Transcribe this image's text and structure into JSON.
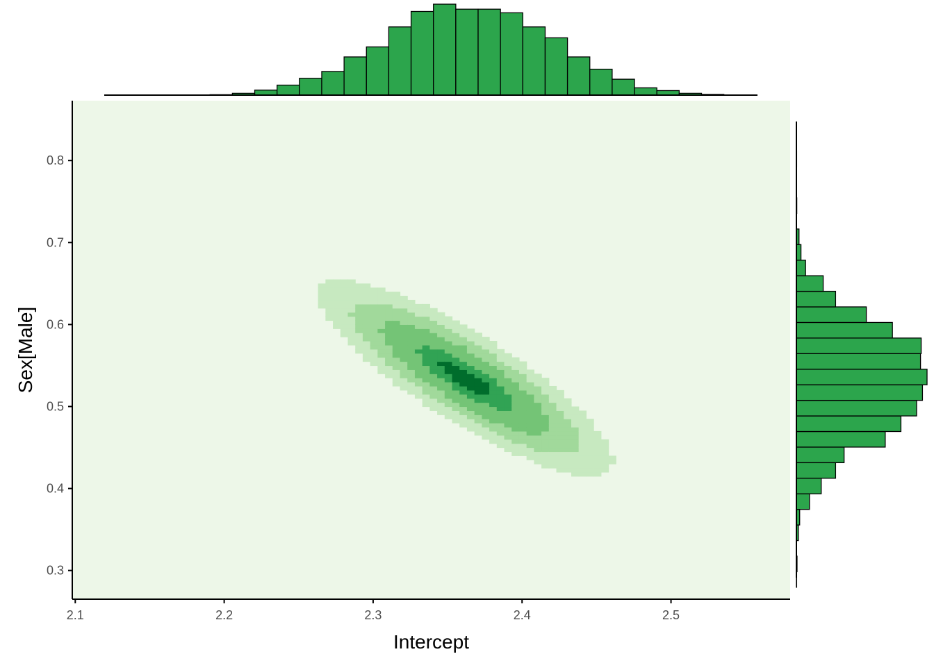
{
  "chart_data": {
    "type": "heatmap",
    "title": "",
    "xlabel": "Intercept",
    "ylabel": "Sex[Male]",
    "xlim": [
      2.098,
      2.58
    ],
    "ylim": [
      0.265,
      0.873
    ],
    "x_ticks": [
      "2.1",
      "2.2",
      "2.3",
      "2.4",
      "2.5"
    ],
    "y_ticks": [
      "0.3",
      "0.4",
      "0.5",
      "0.6",
      "0.7",
      "0.8"
    ],
    "grid": false,
    "legend": "none",
    "colors": {
      "levels": [
        "#edf7e8",
        "#c7e9c0",
        "#a1d99b",
        "#74c476",
        "#31a354",
        "#006d2c"
      ],
      "hist_fill": "#2ca54c",
      "hist_stroke": "#000000",
      "axis": "#000000"
    },
    "density": {
      "center": [
        2.362,
        0.535
      ],
      "sd": [
        0.048,
        0.058
      ],
      "rho": -0.85,
      "grid_step": [
        0.005,
        0.005
      ],
      "region": [
        2.098,
        2.58,
        0.265,
        0.873
      ],
      "level_thresholds": [
        0.12,
        0.28,
        0.5,
        0.8,
        0.94
      ]
    },
    "marginal_x": {
      "bin_width": 0.015,
      "bins": [
        {
          "x": 2.198,
          "count": 5
        },
        {
          "x": 2.213,
          "count": 20
        },
        {
          "x": 2.228,
          "count": 55
        },
        {
          "x": 2.243,
          "count": 110
        },
        {
          "x": 2.258,
          "count": 185
        },
        {
          "x": 2.273,
          "count": 260
        },
        {
          "x": 2.288,
          "count": 420
        },
        {
          "x": 2.303,
          "count": 530
        },
        {
          "x": 2.318,
          "count": 750
        },
        {
          "x": 2.333,
          "count": 920
        },
        {
          "x": 2.348,
          "count": 1000
        },
        {
          "x": 2.363,
          "count": 945
        },
        {
          "x": 2.378,
          "count": 945
        },
        {
          "x": 2.393,
          "count": 905
        },
        {
          "x": 2.408,
          "count": 750
        },
        {
          "x": 2.423,
          "count": 630
        },
        {
          "x": 2.438,
          "count": 420
        },
        {
          "x": 2.453,
          "count": 285
        },
        {
          "x": 2.468,
          "count": 175
        },
        {
          "x": 2.483,
          "count": 80
        },
        {
          "x": 2.498,
          "count": 50
        },
        {
          "x": 2.513,
          "count": 20
        },
        {
          "x": 2.528,
          "count": 8
        }
      ]
    },
    "marginal_y": {
      "bin_width": 0.019,
      "bins": [
        {
          "y": 0.289,
          "count": 2
        },
        {
          "y": 0.308,
          "count": 5
        },
        {
          "y": 0.346,
          "count": 15
        },
        {
          "y": 0.365,
          "count": 25
        },
        {
          "y": 0.384,
          "count": 100
        },
        {
          "y": 0.403,
          "count": 190
        },
        {
          "y": 0.422,
          "count": 300
        },
        {
          "y": 0.441,
          "count": 365
        },
        {
          "y": 0.46,
          "count": 680
        },
        {
          "y": 0.479,
          "count": 800
        },
        {
          "y": 0.498,
          "count": 920
        },
        {
          "y": 0.517,
          "count": 965
        },
        {
          "y": 0.536,
          "count": 1000
        },
        {
          "y": 0.555,
          "count": 950
        },
        {
          "y": 0.574,
          "count": 955
        },
        {
          "y": 0.593,
          "count": 735
        },
        {
          "y": 0.612,
          "count": 535
        },
        {
          "y": 0.631,
          "count": 300
        },
        {
          "y": 0.65,
          "count": 205
        },
        {
          "y": 0.669,
          "count": 70
        },
        {
          "y": 0.688,
          "count": 35
        },
        {
          "y": 0.707,
          "count": 20
        },
        {
          "y": 0.745,
          "count": 3
        },
        {
          "y": 0.802,
          "count": 2
        }
      ]
    }
  }
}
